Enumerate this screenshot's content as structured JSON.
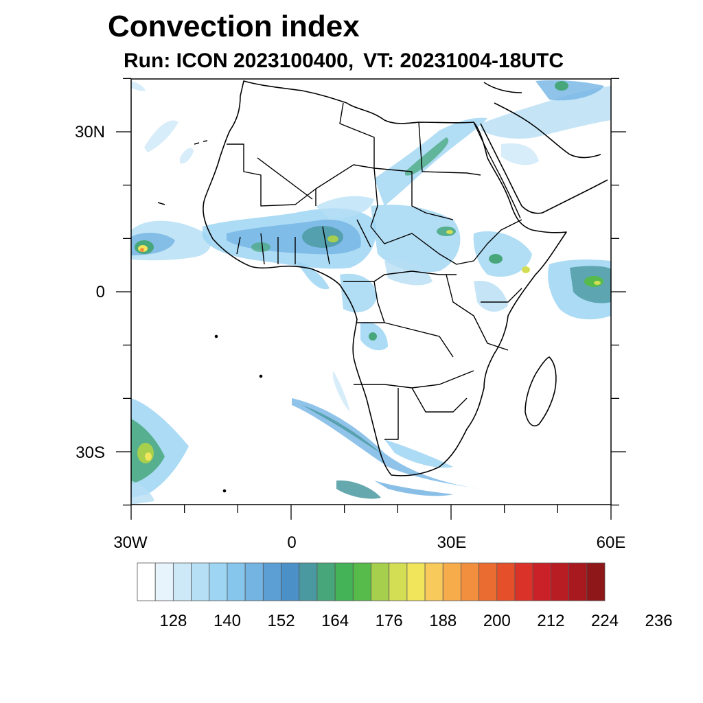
{
  "title": "Convection index",
  "subtitle": {
    "run": "Run: ICON 2023100400,",
    "vt": "VT: 20231004-18UTC"
  },
  "axes": {
    "lat_labels": [
      "30N",
      "0",
      "30S"
    ],
    "lon_labels": [
      "30W",
      "0",
      "30E",
      "60E"
    ]
  },
  "colorbar": {
    "labels": [
      "128",
      "140",
      "152",
      "164",
      "176",
      "188",
      "200",
      "212",
      "224",
      "236"
    ],
    "colors": [
      "#ffffff",
      "#e8f4fb",
      "#cde8f7",
      "#b6dff5",
      "#9dd5f3",
      "#86c5ec",
      "#74b4e3",
      "#5c9fd4",
      "#4b91c8",
      "#4a99a0",
      "#47a77b",
      "#44b357",
      "#56bb4b",
      "#a7cf4e",
      "#d4de55",
      "#f1e55b",
      "#f8c95b",
      "#f7ac4c",
      "#f28f3e",
      "#eb6c30",
      "#e5502b",
      "#da3229",
      "#c92127",
      "#b81d24",
      "#a8191f",
      "#8e1719"
    ]
  },
  "colors": {
    "coast": "#000000",
    "frame": "#000000"
  }
}
